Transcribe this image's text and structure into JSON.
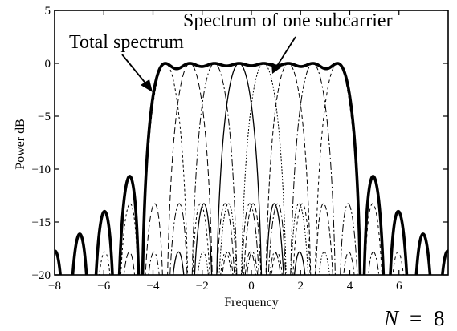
{
  "chart_data": {
    "type": "line",
    "xlabel": "Frequency",
    "ylabel": "Power dB",
    "xlim": [
      -8,
      8
    ],
    "ylim": [
      -20,
      5
    ],
    "x_ticks": [
      -8,
      -6,
      -4,
      -2,
      0,
      2,
      4,
      6
    ],
    "y_ticks": [
      5,
      0,
      -5,
      -10,
      -15,
      -20
    ],
    "grid": false,
    "subcarrier_centers": [
      -3.5,
      -2.5,
      -1.5,
      -0.5,
      0.5,
      1.5,
      2.5,
      3.5
    ],
    "series": [
      {
        "name": "Total spectrum",
        "style": "solid",
        "color": "#000000",
        "width": "heavy"
      },
      {
        "name": "Spectrum of one subcarrier",
        "style": "mixed",
        "color": "#000000",
        "width": "thin"
      }
    ],
    "annotations": [
      {
        "text": "Total spectrum",
        "points_to": {
          "x": -3.7,
          "y": -2.8
        }
      },
      {
        "text": "Spectrum of one subcarrier",
        "points_to": {
          "x": 0.7,
          "y": -1.3
        }
      }
    ]
  },
  "footer": {
    "n_symbol": "N",
    "n_equals": "=",
    "n_value": "8"
  }
}
